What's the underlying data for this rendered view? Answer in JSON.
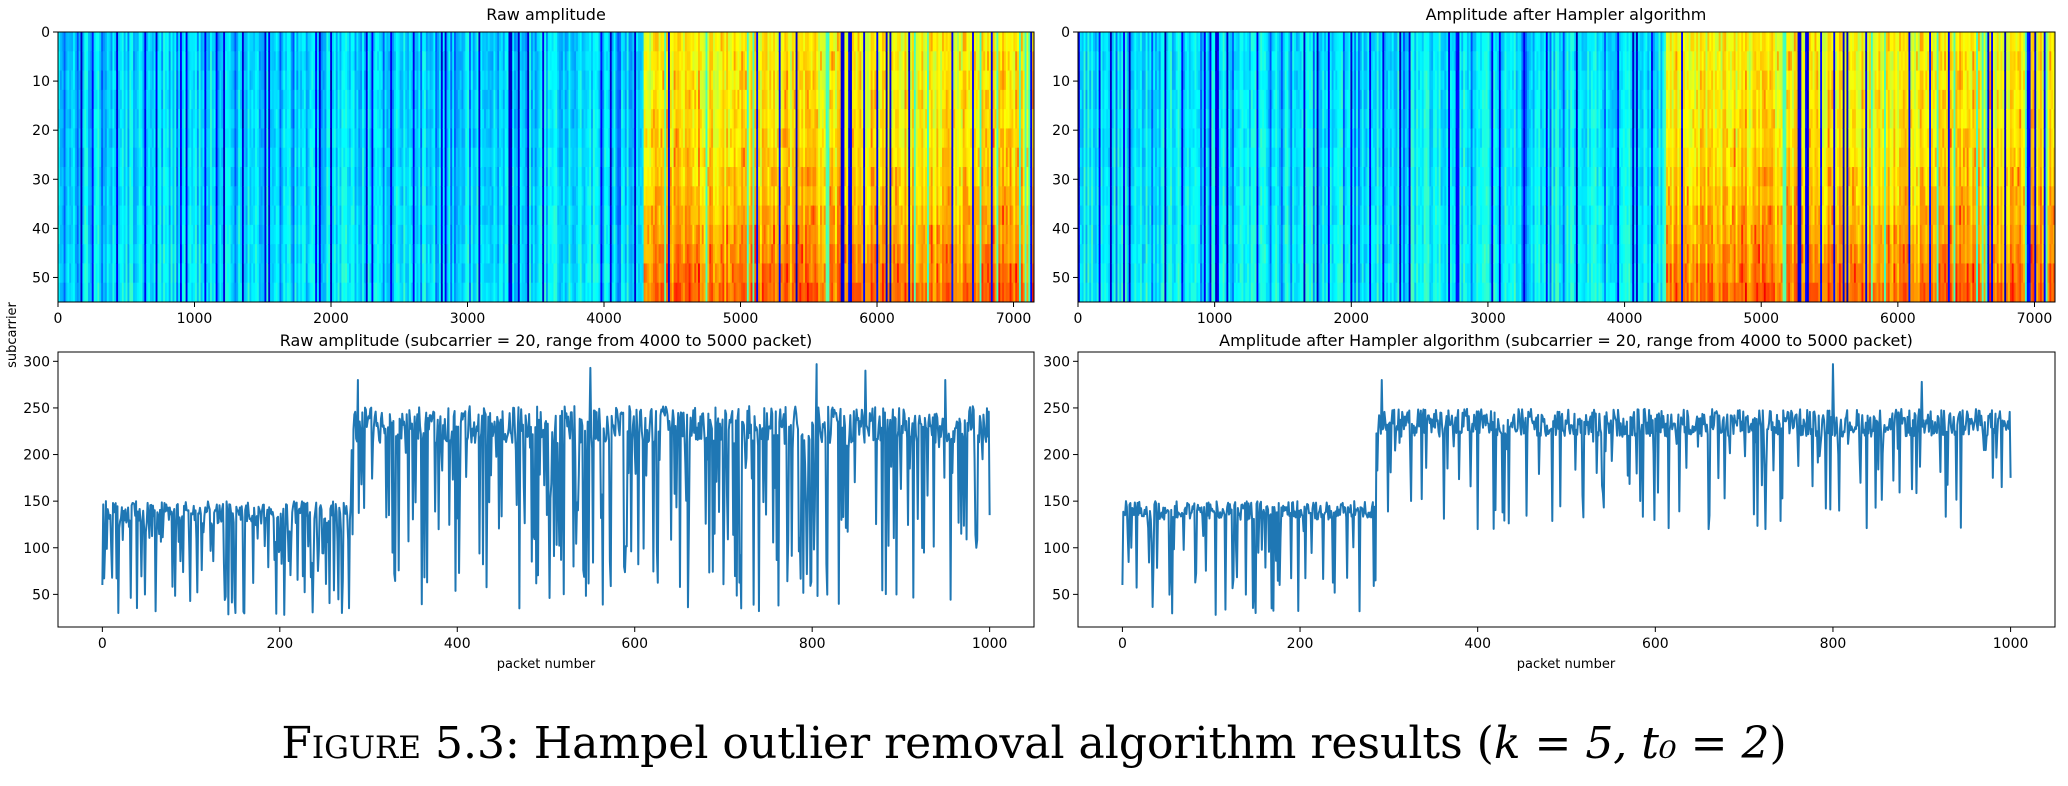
{
  "figure": {
    "caption_label": "Figure 5.3:",
    "caption_text": "Hampel outlier removal algorithm results (",
    "caption_math": "k = 5, t₀ = 2",
    "caption_close": ")"
  },
  "colors": {
    "line": "#1f77b4",
    "axis": "#000000",
    "colormap": "jet"
  },
  "chart_data": [
    {
      "type": "heatmap",
      "title": "Raw amplitude",
      "xlabel": "",
      "ylabel": "subcarrier",
      "x_ticks": [
        0,
        1000,
        2000,
        3000,
        4000,
        5000,
        6000,
        7000
      ],
      "y_ticks": [
        0,
        10,
        20,
        30,
        40,
        50
      ],
      "xlim": [
        0,
        7150
      ],
      "ylim": [
        0,
        55
      ],
      "y_inverted": true,
      "regime_change_packet": 4280,
      "low_level": 0.33,
      "high_level": 0.62,
      "grid": false
    },
    {
      "type": "heatmap",
      "title": "Amplitude after Hampler algorithm",
      "xlabel": "",
      "ylabel": "",
      "x_ticks": [
        0,
        1000,
        2000,
        3000,
        4000,
        5000,
        6000,
        7000
      ],
      "y_ticks": [
        0,
        10,
        20,
        30,
        40,
        50
      ],
      "xlim": [
        0,
        7150
      ],
      "ylim": [
        0,
        55
      ],
      "y_inverted": true,
      "regime_change_packet": 4280,
      "low_level": 0.35,
      "high_level": 0.62,
      "grid": false
    },
    {
      "type": "line",
      "title": "Raw amplitude (subcarrier = 20, range from 4000 to 5000 packet)",
      "xlabel": "packet number",
      "ylabel": "",
      "x_ticks": [
        0,
        200,
        400,
        600,
        800,
        1000
      ],
      "y_ticks": [
        50,
        100,
        150,
        200,
        250,
        300
      ],
      "xlim": [
        -50,
        1050
      ],
      "ylim": [
        15,
        310
      ],
      "grid": false,
      "segments": [
        {
          "x_start": 0,
          "x_end": 280,
          "base": 138,
          "noise": 12,
          "dip_prob": 0.28,
          "dip_min": 28,
          "dip_max": 125
        },
        {
          "x_start": 280,
          "x_end": 1000,
          "base": 232,
          "noise": 20,
          "dip_prob": 0.24,
          "dip_min": 35,
          "dip_max": 215
        }
      ],
      "points": [
        [
          0,
          60
        ],
        [
          4,
          150
        ],
        [
          10,
          98
        ],
        [
          12,
          148
        ],
        [
          18,
          30
        ],
        [
          150,
          30
        ],
        [
          270,
          30
        ],
        [
          288,
          280
        ],
        [
          470,
          35
        ],
        [
          550,
          293
        ],
        [
          720,
          35
        ],
        [
          740,
          32
        ],
        [
          805,
          297
        ],
        [
          860,
          290
        ],
        [
          950,
          280
        ],
        [
          985,
          100
        ],
        [
          992,
          195
        ],
        [
          1000,
          135
        ]
      ]
    },
    {
      "type": "line",
      "title": "Amplitude after Hampler algorithm (subcarrier = 20, range from 4000 to 5000 packet)",
      "xlabel": "packet number",
      "ylabel": "",
      "x_ticks": [
        0,
        200,
        400,
        600,
        800,
        1000
      ],
      "y_ticks": [
        50,
        100,
        150,
        200,
        250,
        300
      ],
      "xlim": [
        -50,
        1050
      ],
      "ylim": [
        15,
        310
      ],
      "grid": false,
      "segments": [
        {
          "x_start": 0,
          "x_end": 285,
          "base": 140,
          "noise": 10,
          "dip_prob": 0.18,
          "dip_min": 28,
          "dip_max": 125
        },
        {
          "x_start": 285,
          "x_end": 1000,
          "base": 234,
          "noise": 15,
          "dip_prob": 0.14,
          "dip_min": 120,
          "dip_max": 215
        }
      ],
      "points": [
        [
          0,
          60
        ],
        [
          4,
          150
        ],
        [
          10,
          100
        ],
        [
          105,
          28
        ],
        [
          150,
          30
        ],
        [
          285,
          65
        ],
        [
          292,
          280
        ],
        [
          400,
          120
        ],
        [
          660,
          120
        ],
        [
          800,
          297
        ],
        [
          900,
          278
        ],
        [
          980,
          175
        ],
        [
          990,
          165
        ],
        [
          1000,
          175
        ]
      ]
    }
  ]
}
